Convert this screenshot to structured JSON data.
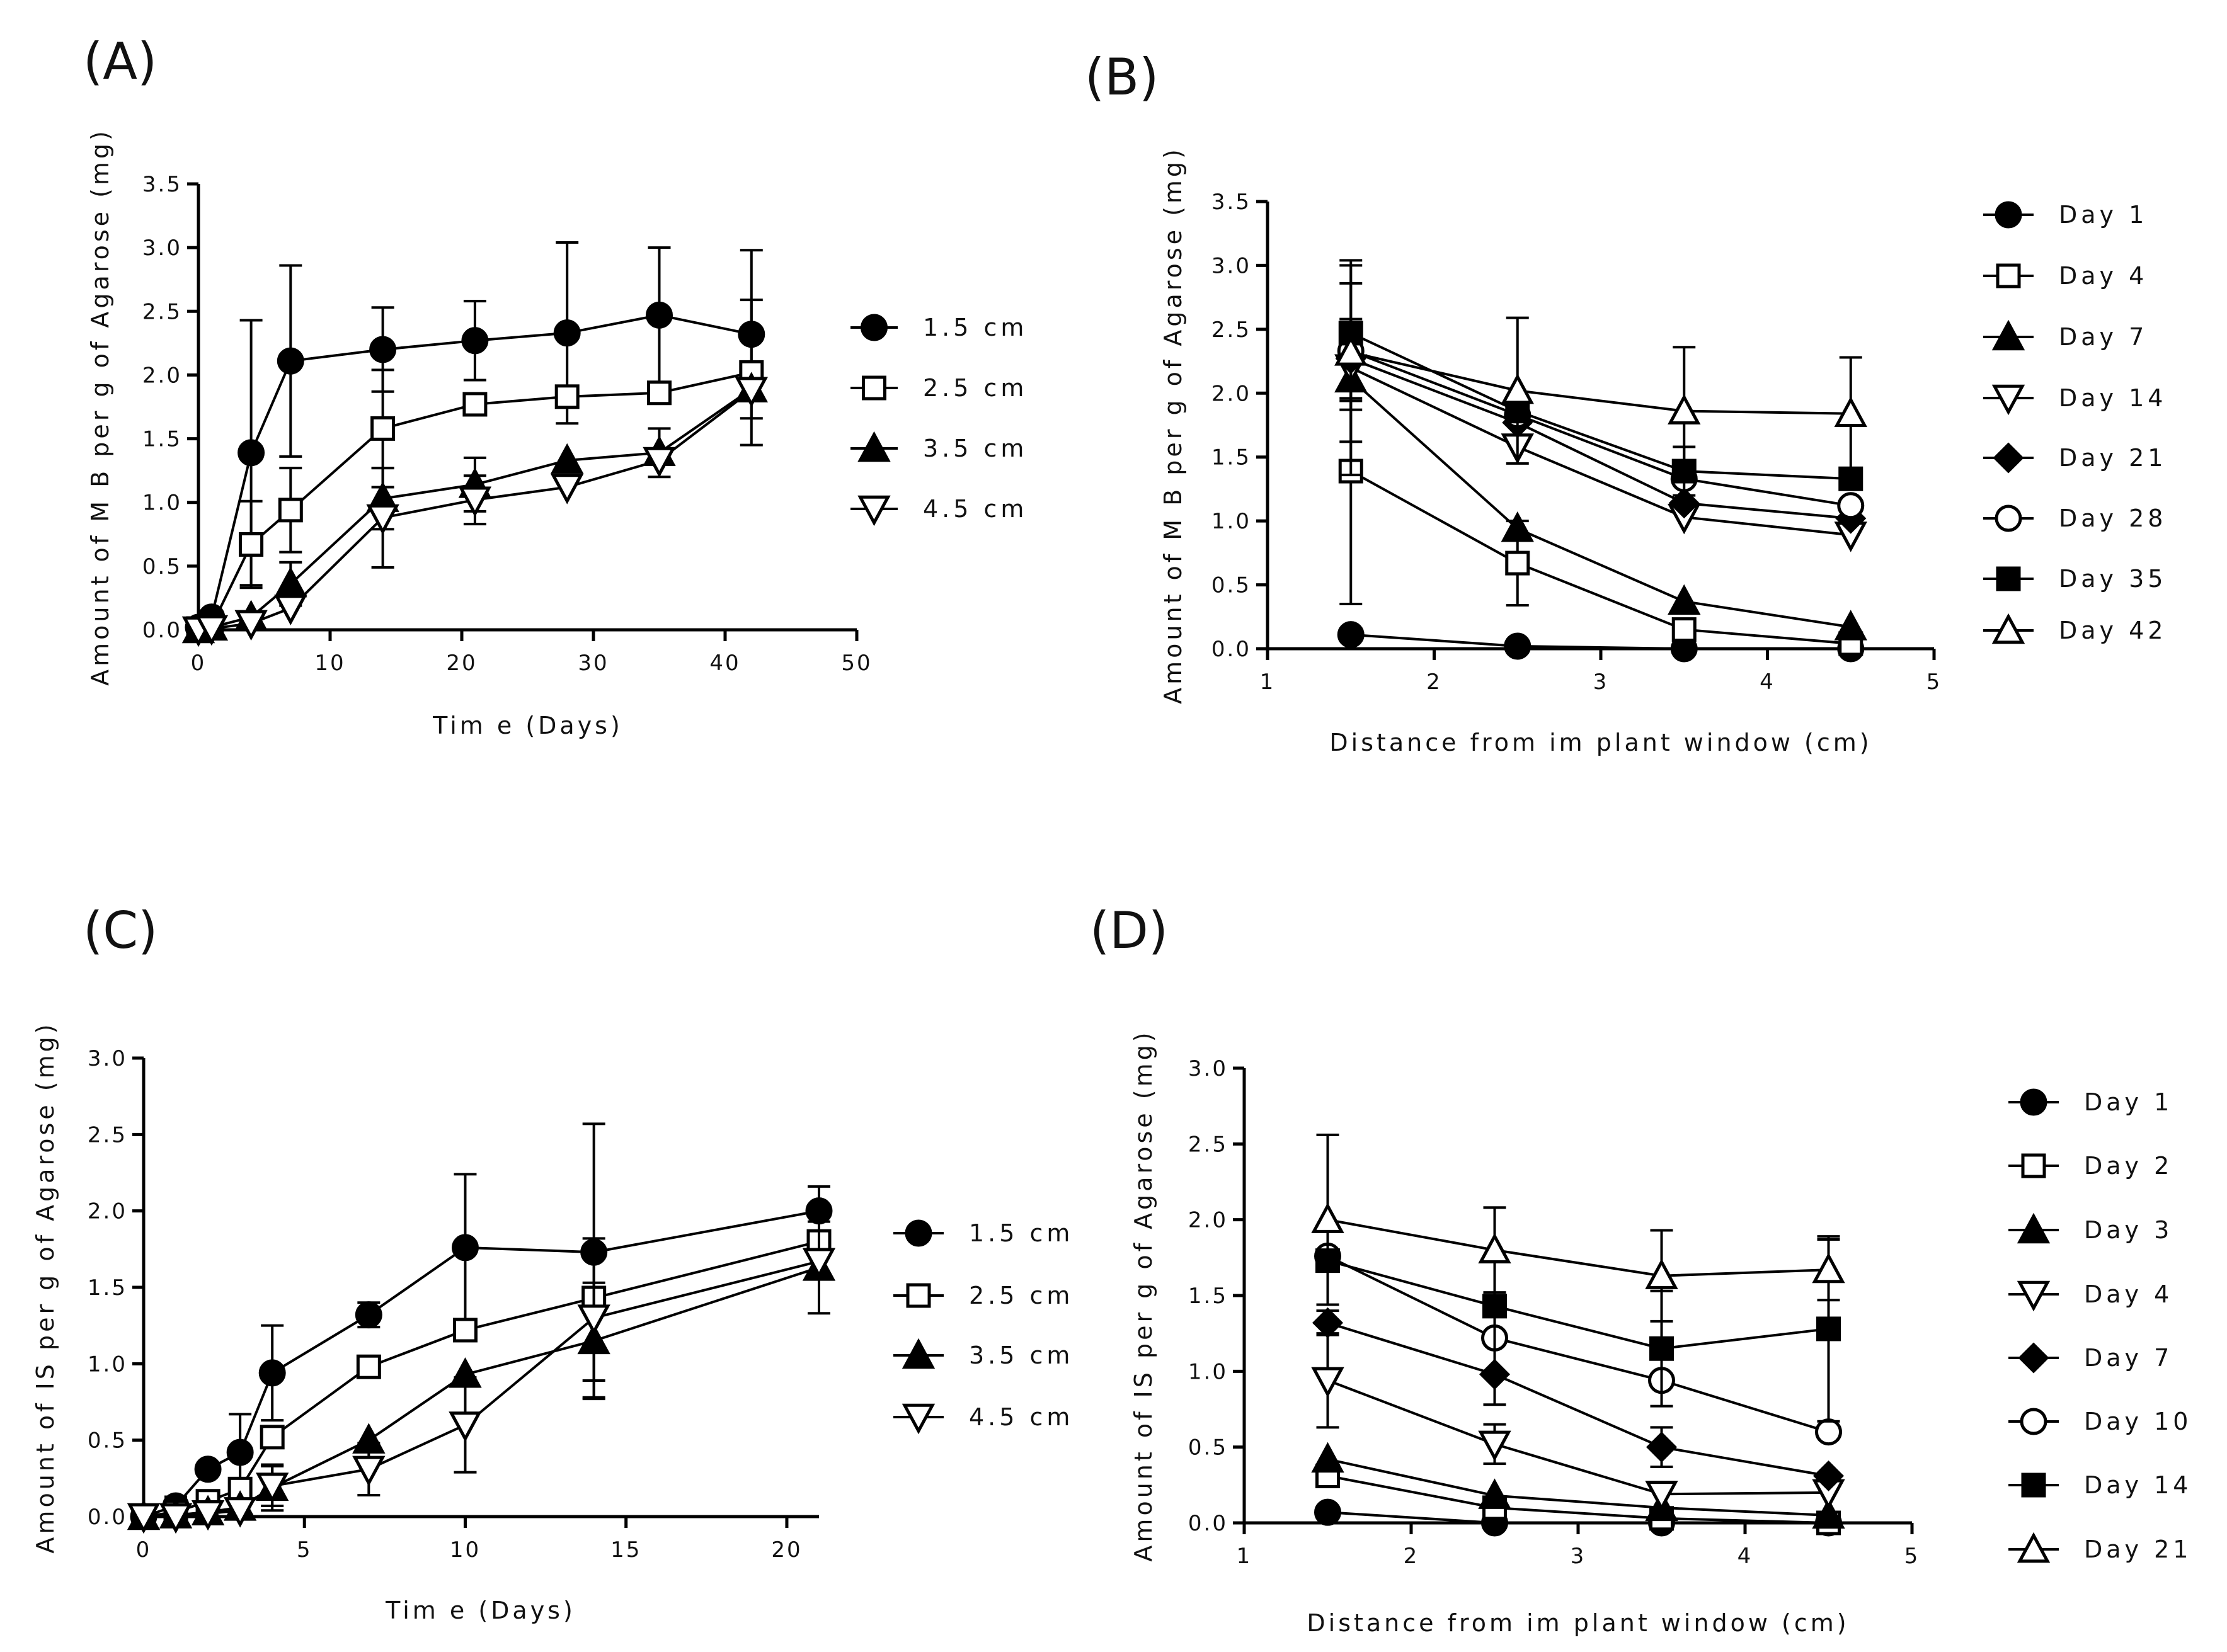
{
  "chart_data": [
    {
      "id": "A",
      "type": "line",
      "panel_label": "(A)",
      "xlabel": "Tim e (Days)",
      "ylabel": "Amount of M B per g of Agarose (mg)",
      "xlim": [
        0,
        50
      ],
      "ylim": [
        0,
        3.5
      ],
      "xticks": [
        0,
        10,
        20,
        30,
        40,
        50
      ],
      "xtick_labels": [
        "0",
        "10",
        "20",
        "30",
        "40",
        "50"
      ],
      "yticks": [
        0,
        0.5,
        1,
        1.5,
        2,
        2.5,
        3,
        3.5
      ],
      "ytick_labels": [
        "0.0",
        "0.5",
        "1.0",
        "1.5",
        "2.0",
        "2.5",
        "3.0",
        "3.5"
      ],
      "x": [
        0,
        1,
        4,
        7,
        14,
        21,
        28,
        35,
        42
      ],
      "series": [
        {
          "name": "1.5 cm",
          "marker": "circle-filled",
          "values": [
            0.02,
            0.1,
            1.39,
            2.11,
            2.2,
            2.27,
            2.33,
            2.47,
            2.32
          ],
          "errors": [
            0,
            0,
            1.04,
            0.75,
            0.33,
            0.31,
            0.71,
            0.53,
            0.66
          ]
        },
        {
          "name": "2.5 cm",
          "marker": "square-open",
          "values": [
            0.01,
            0.03,
            0.67,
            0.94,
            1.58,
            1.77,
            1.83,
            1.86,
            2.02
          ],
          "errors": [
            0,
            0,
            0.34,
            0.33,
            0.46,
            0.0,
            0.0,
            0.0,
            0.57
          ]
        },
        {
          "name": "3.5 cm",
          "marker": "triangle-up-filled",
          "values": [
            0.0,
            0.02,
            0.1,
            0.36,
            1.03,
            1.14,
            1.33,
            1.39,
            1.89
          ],
          "errors": [
            0,
            0,
            0.0,
            0.17,
            0.24,
            0.21,
            0.0,
            0.19,
            0.0
          ]
        },
        {
          "name": "4.5 cm",
          "marker": "triangle-down-open",
          "values": [
            0.0,
            0.01,
            0.05,
            0.17,
            0.88,
            1.02,
            1.12,
            1.33,
            1.88
          ],
          "errors": [
            0,
            0,
            0.0,
            0.0,
            0.39,
            0.19,
            0.0,
            0.0,
            0.0
          ]
        }
      ]
    },
    {
      "id": "B",
      "type": "line",
      "panel_label": "(B)",
      "xlabel": "Distance from im plant window (cm)",
      "ylabel": "Amount of M B per g of Agarose (mg)",
      "xlim": [
        1,
        5
      ],
      "ylim": [
        0,
        3.5
      ],
      "xticks": [
        1,
        2,
        3,
        4,
        5
      ],
      "xtick_labels": [
        "1",
        "2",
        "3",
        "4",
        "5"
      ],
      "yticks": [
        0,
        0.5,
        1,
        1.5,
        2,
        2.5,
        3,
        3.5
      ],
      "ytick_labels": [
        "0.0",
        "0.5",
        "1.0",
        "1.5",
        "2.0",
        "2.5",
        "3.0",
        "3.5"
      ],
      "x": [
        1.5,
        2.5,
        3.5,
        4.5
      ],
      "series": [
        {
          "name": "Day 1",
          "marker": "circle-filled",
          "values": [
            0.11,
            0.02,
            0.0,
            0.0
          ],
          "errors": [
            0,
            0,
            0,
            0
          ]
        },
        {
          "name": "Day 4",
          "marker": "square-open",
          "values": [
            1.39,
            0.67,
            0.15,
            0.04
          ],
          "errors": [
            1.04,
            0.33,
            0,
            0
          ]
        },
        {
          "name": "Day 7",
          "marker": "triangle-up-filled",
          "values": [
            2.11,
            0.94,
            0.37,
            0.17
          ],
          "errors": [
            0.75,
            0,
            0,
            0
          ]
        },
        {
          "name": "Day 14",
          "marker": "triangle-down-open",
          "values": [
            2.2,
            1.58,
            1.03,
            0.89
          ],
          "errors": [
            0.33,
            0.0,
            0,
            0
          ]
        },
        {
          "name": "Day 21",
          "marker": "diamond-filled",
          "values": [
            2.27,
            1.77,
            1.14,
            1.02
          ],
          "errors": [
            0.31,
            0.0,
            0,
            0
          ]
        },
        {
          "name": "Day 28",
          "marker": "circle-open",
          "values": [
            2.33,
            1.83,
            1.33,
            1.12
          ],
          "errors": [
            0.71,
            0.0,
            0.0,
            0
          ]
        },
        {
          "name": "Day 35",
          "marker": "square-filled",
          "values": [
            2.47,
            1.86,
            1.39,
            1.33
          ],
          "errors": [
            0.53,
            0.0,
            0.19,
            0
          ]
        },
        {
          "name": "Day 42",
          "marker": "triangle-up-open",
          "values": [
            2.32,
            2.02,
            1.86,
            1.84
          ],
          "errors": [
            0.0,
            0.57,
            0.5,
            0.44
          ]
        }
      ]
    },
    {
      "id": "C",
      "type": "line",
      "panel_label": "(C)",
      "xlabel": "Tim e (Days)",
      "ylabel": "Amount of IS per g of Agarose (mg)",
      "xlim": [
        0,
        21
      ],
      "ylim": [
        0,
        3.0
      ],
      "xticks": [
        0,
        5,
        10,
        15,
        20
      ],
      "xtick_labels": [
        "0",
        "5",
        "10",
        "15",
        "20"
      ],
      "yticks": [
        0,
        0.5,
        1,
        1.5,
        2,
        2.5,
        3
      ],
      "ytick_labels": [
        "0.0",
        "0.5",
        "1.0",
        "1.5",
        "2.0",
        "2.5",
        "3.0"
      ],
      "x": [
        0,
        1,
        2,
        3,
        4,
        7,
        10,
        14,
        21
      ],
      "series": [
        {
          "name": "1.5 cm",
          "marker": "circle-filled",
          "values": [
            0.0,
            0.07,
            0.31,
            0.42,
            0.94,
            1.32,
            1.76,
            1.73,
            2.0
          ],
          "errors": [
            0,
            0.06,
            0,
            0.25,
            0.31,
            0.08,
            0.48,
            0.84,
            0.16
          ]
        },
        {
          "name": "2.5 cm",
          "marker": "square-open",
          "values": [
            0.0,
            0.03,
            0.1,
            0.18,
            0.52,
            0.98,
            1.22,
            1.43,
            1.8
          ],
          "errors": [
            0,
            0,
            0,
            0,
            0,
            0,
            0,
            0,
            0
          ]
        },
        {
          "name": "3.5 cm",
          "marker": "triangle-up-filled",
          "values": [
            0.0,
            0.01,
            0.03,
            0.06,
            0.19,
            0.5,
            0.93,
            1.15,
            1.63
          ],
          "errors": [
            0,
            0,
            0,
            0,
            0.15,
            0,
            0,
            0.38,
            0.3
          ]
        },
        {
          "name": "4.5 cm",
          "marker": "triangle-down-open",
          "values": [
            0.0,
            0.0,
            0.02,
            0.04,
            0.2,
            0.31,
            0.6,
            1.3,
            1.67
          ],
          "errors": [
            0,
            0,
            0,
            0,
            0.13,
            0.17,
            0.31,
            0.52,
            0.0
          ]
        }
      ]
    },
    {
      "id": "D",
      "type": "line",
      "panel_label": "(D)",
      "xlabel": "Distance from im plant window (cm)",
      "ylabel": "Amount of IS per g of Agarose (mg)",
      "xlim": [
        1,
        5
      ],
      "ylim": [
        0,
        3.0
      ],
      "xticks": [
        1,
        2,
        3,
        4,
        5
      ],
      "xtick_labels": [
        "1",
        "2",
        "3",
        "4",
        "5"
      ],
      "yticks": [
        0,
        0.5,
        1,
        1.5,
        2,
        2.5,
        3
      ],
      "ytick_labels": [
        "0.0",
        "0.5",
        "1.0",
        "1.5",
        "2.0",
        "2.5",
        "3.0"
      ],
      "x": [
        1.5,
        2.5,
        3.5,
        4.5
      ],
      "series": [
        {
          "name": "Day 1",
          "marker": "circle-filled",
          "values": [
            0.07,
            0.0,
            0.0,
            0.0
          ],
          "errors": [
            0,
            0,
            0,
            0
          ]
        },
        {
          "name": "Day 2",
          "marker": "square-open",
          "values": [
            0.31,
            0.1,
            0.03,
            0.0
          ],
          "errors": [
            0.06,
            0,
            0,
            0
          ]
        },
        {
          "name": "Day 3",
          "marker": "triangle-up-filled",
          "values": [
            0.42,
            0.18,
            0.1,
            0.05
          ],
          "errors": [
            0,
            0,
            0,
            0
          ]
        },
        {
          "name": "Day 4",
          "marker": "triangle-down-open",
          "values": [
            0.94,
            0.52,
            0.19,
            0.2
          ],
          "errors": [
            0.31,
            0.13,
            0,
            0
          ]
        },
        {
          "name": "Day 7",
          "marker": "diamond-filled",
          "values": [
            1.32,
            0.98,
            0.5,
            0.31
          ],
          "errors": [
            0.08,
            0.0,
            0.13,
            0
          ]
        },
        {
          "name": "Day 10",
          "marker": "circle-open",
          "values": [
            1.76,
            1.22,
            0.94,
            0.6
          ],
          "errors": [
            0.0,
            0.0,
            0.0,
            0.0
          ]
        },
        {
          "name": "Day 14",
          "marker": "square-filled",
          "values": [
            1.73,
            1.43,
            1.15,
            1.28
          ],
          "errors": [
            0.0,
            0.65,
            0.38,
            0.61
          ]
        },
        {
          "name": "Day 21",
          "marker": "triangle-up-open",
          "values": [
            2.0,
            1.8,
            1.63,
            1.67
          ],
          "errors": [
            0.56,
            0.28,
            0.3,
            0.2
          ]
        }
      ]
    }
  ]
}
